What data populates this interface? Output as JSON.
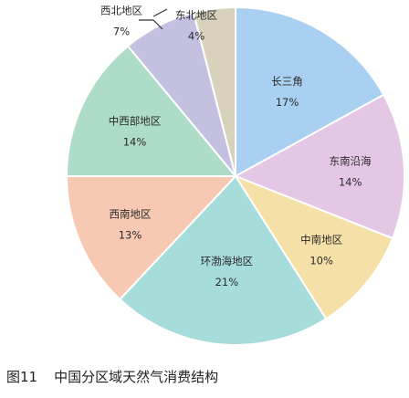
{
  "chart_data": {
    "type": "pie",
    "title": "中国分区域天然气消费结构",
    "figure_number": "图11",
    "start_angle_deg": 0,
    "direction": "clockwise",
    "slices": [
      {
        "label": "长三角",
        "percent_label": "17%",
        "value": 17,
        "color": "#a9d0f0"
      },
      {
        "label": "东南沿海",
        "percent_label": "14%",
        "value": 14,
        "color": "#e4c7e4"
      },
      {
        "label": "中南地区",
        "percent_label": "10%",
        "value": 10,
        "color": "#f5e0a8"
      },
      {
        "label": "环渤海地区",
        "percent_label": "21%",
        "value": 21,
        "color": "#a6dcd9"
      },
      {
        "label": "西南地区",
        "percent_label": "13%",
        "value": 13,
        "color": "#f7c8b2"
      },
      {
        "label": "中西部地区",
        "percent_label": "14%",
        "value": 14,
        "color": "#addcc8"
      },
      {
        "label": "西北地区",
        "percent_label": "7%",
        "value": 7,
        "color": "#c4c0e0"
      },
      {
        "label": "东北地区",
        "percent_label": "4%",
        "value": 4,
        "color": "#d8d2bd"
      }
    ],
    "legend": "none"
  }
}
